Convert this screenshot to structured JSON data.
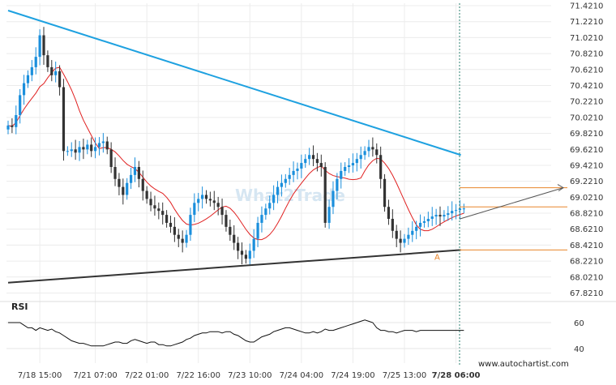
{
  "chart_data": {
    "type": "candlestick",
    "instrument_note": "",
    "y_ticks": [
      "71.4210",
      "71.2210",
      "71.0210",
      "70.8210",
      "70.6210",
      "70.4210",
      "70.2210",
      "70.0210",
      "69.8210",
      "69.6210",
      "69.4210",
      "69.2210",
      "69.0210",
      "68.8210",
      "68.6210",
      "68.4210",
      "68.2210",
      "68.0210",
      "67.8210"
    ],
    "ylim": [
      67.7,
      71.45
    ],
    "x_ticks": [
      "7/18 15:00",
      "7/21 07:00",
      "7/22 01:00",
      "7/22 16:00",
      "7/23 10:00",
      "7/24 04:00",
      "7/24 19:00",
      "7/25 13:00",
      "7/28 06:00"
    ],
    "x_tick_index": [
      8,
      22,
      35,
      48,
      61,
      74,
      87,
      100,
      113
    ],
    "n_bars": 116,
    "closes": [
      69.92,
      69.9,
      70.05,
      70.3,
      70.45,
      70.55,
      70.65,
      70.78,
      71.05,
      70.8,
      70.65,
      70.55,
      70.6,
      70.4,
      69.6,
      69.6,
      69.62,
      69.58,
      69.65,
      69.62,
      69.68,
      69.6,
      69.65,
      69.7,
      69.72,
      69.62,
      69.4,
      69.25,
      69.15,
      69.05,
      69.2,
      69.3,
      69.4,
      69.25,
      69.1,
      69.0,
      68.92,
      68.88,
      68.85,
      68.8,
      68.7,
      68.65,
      68.55,
      68.5,
      68.45,
      68.55,
      68.8,
      68.95,
      69.0,
      69.05,
      69.0,
      68.98,
      68.95,
      68.9,
      68.8,
      68.65,
      68.55,
      68.45,
      68.35,
      68.3,
      68.25,
      68.35,
      68.5,
      68.7,
      68.8,
      68.88,
      68.95,
      69.05,
      69.15,
      69.2,
      69.25,
      69.3,
      69.35,
      69.38,
      69.45,
      69.5,
      69.55,
      69.5,
      69.45,
      69.4,
      68.7,
      68.9,
      69.1,
      69.25,
      69.35,
      69.4,
      69.42,
      69.45,
      69.5,
      69.55,
      69.6,
      69.65,
      69.62,
      69.55,
      69.25,
      68.9,
      68.75,
      68.6,
      68.5,
      68.45,
      68.5,
      68.55,
      68.6,
      68.65,
      68.7,
      68.72,
      68.75,
      68.78,
      68.8,
      68.78,
      68.8,
      68.82,
      68.85,
      68.86,
      68.88,
      68.88
    ],
    "channel_upper": {
      "from": [
        0,
        71.36
      ],
      "to": [
        113,
        69.55
      ]
    },
    "channel_lower": {
      "from": [
        0,
        67.95
      ],
      "to": [
        113,
        68.36
      ]
    },
    "moving_average_color": "#e02020",
    "levels": [
      {
        "label": "",
        "value": 69.14,
        "color": "#e8852a"
      },
      {
        "label": "",
        "value": 68.9,
        "color": "#e8852a"
      },
      {
        "label": "A",
        "value": 68.36,
        "color": "#e8852a"
      }
    ],
    "projection": {
      "from": [
        113,
        68.75
      ],
      "to": [
        138,
        69.14
      ],
      "color": "#555555"
    },
    "watermark": "What2Trade",
    "rsi": {
      "label": "RSI",
      "ticks": [
        "60",
        "40"
      ],
      "ylim": [
        25,
        75
      ],
      "levels": [
        60,
        40
      ],
      "values": [
        60,
        60,
        60,
        60,
        58,
        56,
        56,
        54,
        56,
        55,
        54,
        55,
        53,
        52,
        50,
        48,
        46,
        45,
        44,
        44,
        43,
        42,
        42,
        42,
        42,
        43,
        44,
        45,
        45,
        44,
        44,
        46,
        47,
        46,
        45,
        44,
        45,
        45,
        43,
        43,
        42,
        42,
        43,
        44,
        45,
        47,
        48,
        50,
        51,
        52,
        52,
        53,
        53,
        53,
        52,
        53,
        53,
        51,
        50,
        48,
        46,
        45,
        45,
        47,
        49,
        50,
        51,
        53,
        54,
        55,
        56,
        56,
        55,
        54,
        53,
        52,
        52,
        53,
        52,
        53,
        55,
        54,
        54,
        55,
        56,
        57,
        58,
        59,
        60,
        61,
        62,
        61,
        60,
        56,
        54,
        54,
        53,
        53,
        52,
        53,
        54,
        54,
        54,
        53,
        54,
        54,
        54,
        54,
        54,
        54,
        54,
        54,
        54,
        54,
        54,
        54
      ]
    },
    "current_time_label": "7/28 06:00"
  },
  "footer": {
    "site": "www.autochartist.com"
  }
}
